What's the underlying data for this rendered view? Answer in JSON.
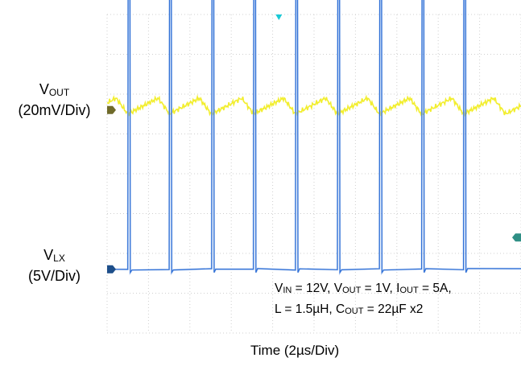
{
  "chart_data": {
    "type": "line",
    "xlabel": "Time (2µs/Div)",
    "x_unit_per_div": "2µs",
    "grid": true,
    "divisions": {
      "x": 10,
      "y": 8
    },
    "series": [
      {
        "name": "VOUT",
        "label_main": "V",
        "label_sub": "OUT",
        "scale": "(20mV/Div)",
        "color": "#f2ee2e",
        "ground_marker_div": 2.4,
        "ripple_min_div": -0.1,
        "ripple_max_div": 0.3,
        "period_us": 2.03,
        "valley_times_us": [
          1.0,
          3.0,
          5.05,
          7.07,
          9.1,
          11.13,
          13.16,
          15.2,
          17.22
        ]
      },
      {
        "name": "VLX",
        "label_main": "V",
        "label_sub": "LX",
        "scale": "(5V/Div)",
        "color": "#2f6fd6",
        "ground_marker_div": 6.4,
        "pulse_high_div": -1.95,
        "pulse_width_us": 0.12,
        "pulse_start_times_us": [
          1.0,
          3.0,
          5.05,
          7.07,
          9.1,
          11.13,
          13.16,
          15.2,
          17.22
        ]
      }
    ],
    "trigger_marker_x_us": 8.3,
    "trigger_level_marker_div": 5.6,
    "conditions": {
      "line1": [
        {
          "t": "V"
        },
        {
          "t": "IN",
          "sub": true
        },
        {
          "t": " = 12V, V"
        },
        {
          "t": "OUT",
          "sub": true
        },
        {
          "t": " = 1V, I"
        },
        {
          "t": "OUT",
          "sub": true
        },
        {
          "t": " = 5A,"
        }
      ],
      "line2": [
        {
          "t": "L = 1.5µH, C"
        },
        {
          "t": "OUT",
          "sub": true
        },
        {
          "t": " = 22µF x2"
        }
      ]
    }
  }
}
